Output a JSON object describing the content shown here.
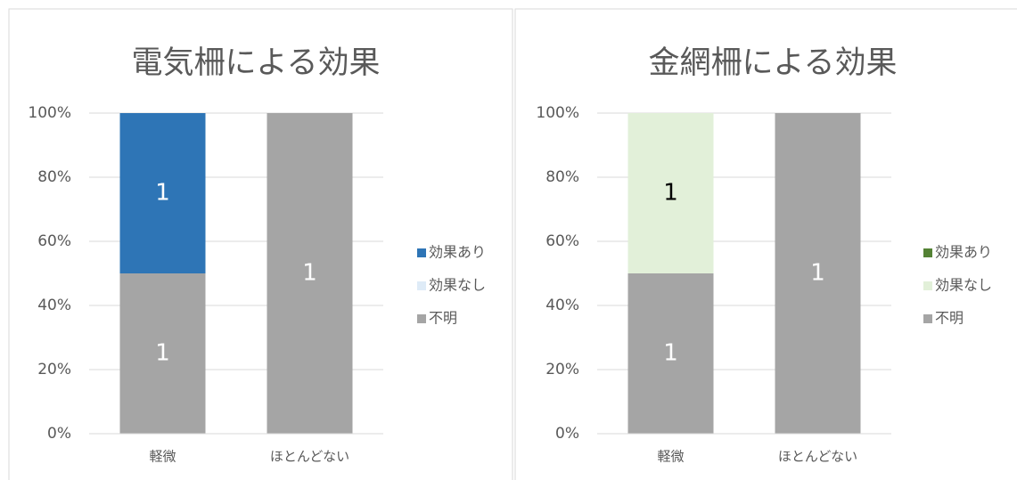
{
  "chart_data": [
    {
      "type": "bar",
      "stacked": "percent",
      "title": "電気柵による効果",
      "categories": [
        "軽微",
        "ほとんどない"
      ],
      "series": [
        {
          "name": "効果あり",
          "color": "#2e75b6",
          "values": [
            1,
            0
          ]
        },
        {
          "name": "効果なし",
          "color": "#deebf7",
          "values": [
            0,
            0
          ]
        },
        {
          "name": "不明",
          "color": "#a5a5a5",
          "values": [
            1,
            1
          ]
        }
      ],
      "ylim": [
        0,
        100
      ],
      "yticks": [
        {
          "value": 0,
          "label": "0%"
        },
        {
          "value": 20,
          "label": "20%"
        },
        {
          "value": 40,
          "label": "40%"
        },
        {
          "value": 60,
          "label": "60%"
        },
        {
          "value": 80,
          "label": "80%"
        },
        {
          "value": 100,
          "label": "100%"
        }
      ],
      "grid": true,
      "legend": "right"
    },
    {
      "type": "bar",
      "stacked": "percent",
      "title": "金網柵による効果",
      "categories": [
        "軽微",
        "ほとんどない"
      ],
      "series": [
        {
          "name": "効果あり",
          "color": "#548235",
          "values": [
            0,
            0
          ]
        },
        {
          "name": "効果なし",
          "color": "#e2f0d9",
          "values": [
            1,
            0
          ]
        },
        {
          "name": "不明",
          "color": "#a5a5a5",
          "values": [
            1,
            1
          ]
        }
      ],
      "ylim": [
        0,
        100
      ],
      "yticks": [
        {
          "value": 0,
          "label": "0%"
        },
        {
          "value": 20,
          "label": "20%"
        },
        {
          "value": 40,
          "label": "40%"
        },
        {
          "value": 60,
          "label": "60%"
        },
        {
          "value": 80,
          "label": "80%"
        },
        {
          "value": 100,
          "label": "100%"
        }
      ],
      "grid": true,
      "legend": "right"
    }
  ]
}
